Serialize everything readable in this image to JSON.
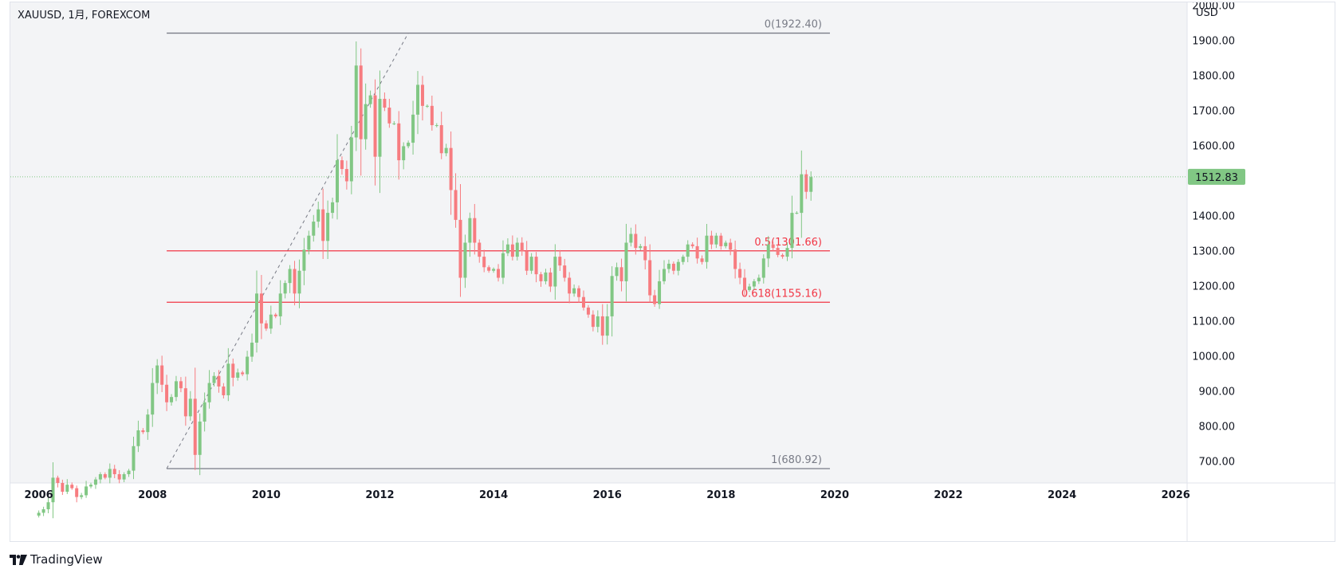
{
  "header": {
    "symbol_line": "XAUUSD, 1月, FOREXCOM",
    "currency": "USD"
  },
  "brand": {
    "name": "TradingView",
    "icon": "tradingview-logo-icon"
  },
  "price_tag": {
    "value": "1512.83",
    "color": "#81c784"
  },
  "colors": {
    "up": "#81c784",
    "down": "#f77c80",
    "fib_level": "#f23645",
    "fib_bound": "#787b86",
    "chart_bg": "#f3f4f6"
  },
  "chart_data": {
    "type": "candlestick",
    "title": "XAUUSD, 1月, FOREXCOM",
    "ylabel": "USD",
    "ylim": [
      640,
      2010
    ],
    "xlim": [
      2005.5,
      2026.2
    ],
    "y_ticks": [
      700,
      800,
      900,
      1000,
      1100,
      1200,
      1300,
      1400,
      1500,
      1600,
      1700,
      1800,
      1900,
      2000
    ],
    "y_tick_labels": [
      "700.00",
      "800.00",
      "900.00",
      "1000.00",
      "1100.00",
      "1200.00",
      "1300.00",
      "1400.00",
      "1500.00",
      "1600.00",
      "1700.00",
      "1800.00",
      "1900.00",
      "2000.00"
    ],
    "x_ticks": [
      2006,
      2008,
      2010,
      2012,
      2014,
      2016,
      2018,
      2020,
      2022,
      2024,
      2026
    ],
    "x_tick_labels": [
      "2006",
      "2008",
      "2010",
      "2012",
      "2014",
      "2016",
      "2018",
      "2020",
      "2022",
      "2024",
      "2026"
    ],
    "last_price": 1512.83,
    "fibonacci": {
      "start_date": "2008-04",
      "end_date": "2019-12",
      "trend_from": {
        "x": "2008-04",
        "y": 680.92
      },
      "trend_to": {
        "x": "2012-07",
        "y": 1922.4
      },
      "levels": [
        {
          "label": "0(1922.40)",
          "value": 1922.4,
          "style": "bound"
        },
        {
          "label": "0.5(1301.66)",
          "value": 1301.66,
          "style": "level"
        },
        {
          "label": "0.618(1155.16)",
          "value": 1155.16,
          "style": "level"
        },
        {
          "label": "1(680.92)",
          "value": 680.92,
          "style": "bound"
        }
      ]
    },
    "anchors": {
      "start": "2006-01",
      "closes": [
        555,
        565,
        585,
        655,
        640,
        615,
        635,
        625,
        600,
        605,
        630,
        635,
        650,
        665,
        655,
        680,
        665,
        650,
        665,
        675,
        745,
        790,
        785,
        835,
        925,
        975,
        920,
        870,
        885,
        930,
        910,
        830,
        880,
        720,
        815,
        870,
        925,
        945,
        915,
        890,
        980,
        940,
        955,
        950,
        1000,
        1040,
        1180,
        1095,
        1080,
        1120,
        1115,
        1180,
        1210,
        1250,
        1180,
        1245,
        1305,
        1345,
        1385,
        1420,
        1330,
        1410,
        1440,
        1560,
        1535,
        1500,
        1625,
        1830,
        1620,
        1720,
        1745,
        1570,
        1735,
        1710,
        1665,
        1665,
        1560,
        1600,
        1610,
        1690,
        1775,
        1715,
        1715,
        1660,
        1660,
        1580,
        1595,
        1475,
        1390,
        1225,
        1325,
        1395,
        1325,
        1285,
        1255,
        1245,
        1250,
        1225,
        1295,
        1320,
        1285,
        1325,
        1300,
        1245,
        1285,
        1235,
        1215,
        1240,
        1200,
        1285,
        1260,
        1225,
        1180,
        1195,
        1170,
        1140,
        1120,
        1085,
        1115,
        1060,
        1115,
        1230,
        1255,
        1215,
        1325,
        1350,
        1310,
        1315,
        1275,
        1175,
        1150,
        1215,
        1250,
        1265,
        1245,
        1270,
        1285,
        1320,
        1315,
        1280,
        1270,
        1345,
        1320,
        1345,
        1315,
        1325,
        1305,
        1250,
        1225,
        1190,
        1200,
        1215,
        1225,
        1280,
        1320,
        1310,
        1290,
        1285,
        1310,
        1410,
        1410,
        1520,
        1470,
        1512
      ]
    }
  }
}
